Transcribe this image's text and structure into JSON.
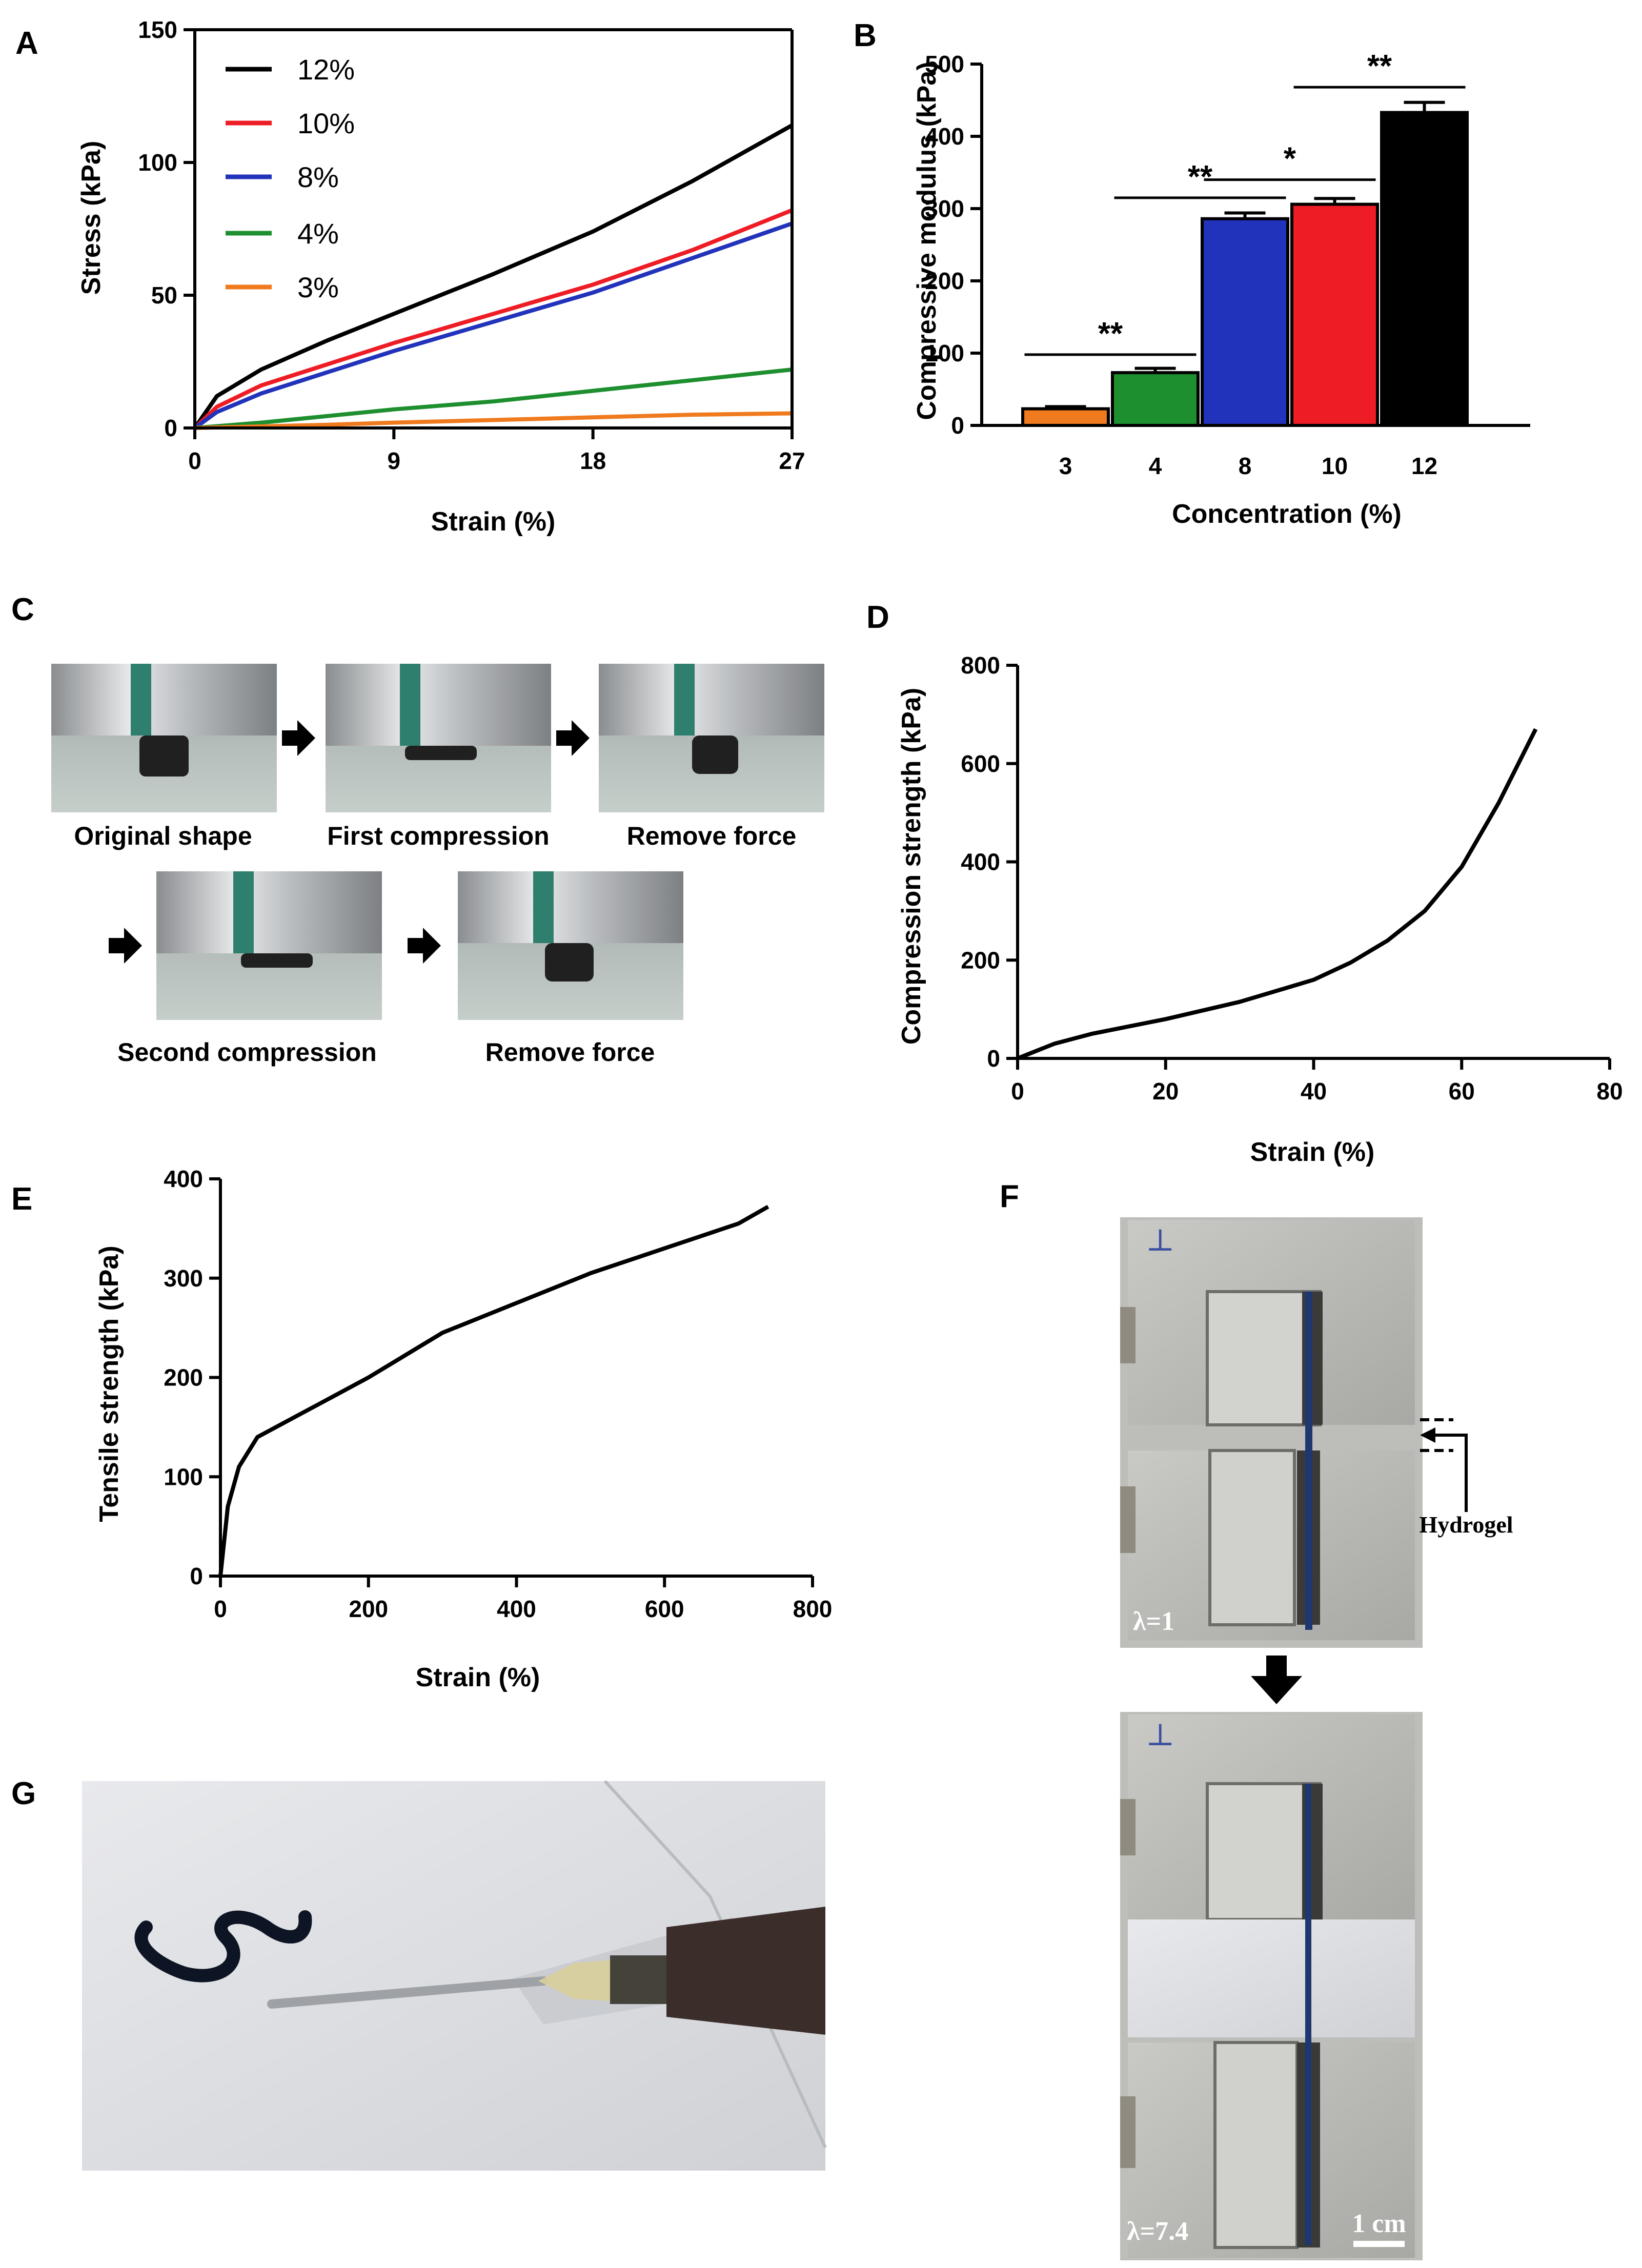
{
  "panels": {
    "A": "A",
    "B": "B",
    "C": "C",
    "D": "D",
    "E": "E",
    "F": "F",
    "G": "G"
  },
  "chart_data": [
    {
      "panel": "A",
      "type": "line",
      "title": "",
      "xlabel": "Strain (%)",
      "ylabel": "Stress (kPa)",
      "xlim": [
        0,
        27
      ],
      "ylim": [
        0,
        150
      ],
      "xticks": [
        "0",
        "9",
        "18",
        "27"
      ],
      "yticks": [
        "0",
        "50",
        "100",
        "150"
      ],
      "grid": false,
      "legend": "top-left",
      "series": [
        {
          "name": "12%",
          "color": "#000000",
          "x": [
            0,
            1,
            3,
            6,
            9,
            13.5,
            18,
            22.5,
            27
          ],
          "y": [
            0,
            12,
            22,
            33,
            43,
            58,
            74,
            93,
            114
          ]
        },
        {
          "name": "10%",
          "color": "#ee1c25",
          "x": [
            0,
            1,
            3,
            6,
            9,
            13.5,
            18,
            22.5,
            27
          ],
          "y": [
            0,
            8,
            16,
            24,
            32,
            43,
            54,
            67,
            82
          ]
        },
        {
          "name": "8%",
          "color": "#2233bb",
          "x": [
            0,
            1,
            3,
            6,
            9,
            13.5,
            18,
            22.5,
            27
          ],
          "y": [
            0,
            6,
            13,
            21,
            29,
            40,
            51,
            64,
            77
          ]
        },
        {
          "name": "4%",
          "color": "#1e8f2e",
          "x": [
            0,
            3,
            6,
            9,
            13.5,
            18,
            22.5,
            27
          ],
          "y": [
            0,
            2,
            4.5,
            7,
            10,
            14,
            18,
            22
          ]
        },
        {
          "name": "3%",
          "color": "#f07a1e",
          "x": [
            0,
            3,
            6,
            9,
            13.5,
            18,
            22.5,
            27
          ],
          "y": [
            0,
            0.6,
            1.2,
            2,
            3,
            4,
            5,
            5.5
          ]
        }
      ]
    },
    {
      "panel": "B",
      "type": "bar",
      "title": "",
      "xlabel": "Concentration (%)",
      "ylabel": "Compressive modulus (kPa)",
      "ylim": [
        0,
        500
      ],
      "yticks": [
        "0",
        "100",
        "200",
        "300",
        "400",
        "500"
      ],
      "categories": [
        "3",
        "4",
        "8",
        "10",
        "12"
      ],
      "values": [
        23,
        73,
        286,
        306,
        433
      ],
      "errors": [
        3,
        6,
        8,
        8,
        14
      ],
      "colors": [
        "#f07a1e",
        "#1e8f2e",
        "#2233bb",
        "#ee1c25",
        "#000000"
      ],
      "significance": [
        {
          "from": 0,
          "to": 1,
          "label": "**",
          "y": 98
        },
        {
          "from": 1,
          "to": 2,
          "label": "**",
          "y": 315
        },
        {
          "from": 2,
          "to": 3,
          "label": "*",
          "y": 340
        },
        {
          "from": 3,
          "to": 4,
          "label": "**",
          "y": 468
        }
      ]
    },
    {
      "panel": "D",
      "type": "line",
      "title": "",
      "xlabel": "Strain (%)",
      "ylabel": "Compression strength (kPa)",
      "xlim": [
        0,
        80
      ],
      "ylim": [
        0,
        800
      ],
      "xticks": [
        "0",
        "20",
        "40",
        "60",
        "80"
      ],
      "yticks": [
        "0",
        "200",
        "400",
        "600",
        "800"
      ],
      "grid": false,
      "series": [
        {
          "name": "",
          "color": "#000000",
          "x": [
            0,
            5,
            10,
            20,
            30,
            40,
            45,
            50,
            55,
            60,
            65,
            70
          ],
          "y": [
            0,
            30,
            50,
            80,
            115,
            160,
            195,
            240,
            300,
            390,
            520,
            670
          ]
        }
      ]
    },
    {
      "panel": "E",
      "type": "line",
      "title": "",
      "xlabel": "Strain (%)",
      "ylabel": "Tensile strength (kPa)",
      "xlim": [
        0,
        800
      ],
      "ylim": [
        0,
        400
      ],
      "xticks": [
        "0",
        "200",
        "400",
        "600",
        "800"
      ],
      "yticks": [
        "0",
        "100",
        "200",
        "300",
        "400"
      ],
      "grid": false,
      "series": [
        {
          "name": "",
          "color": "#000000",
          "x": [
            0,
            10,
            25,
            50,
            100,
            150,
            200,
            300,
            400,
            500,
            600,
            700,
            740
          ],
          "y": [
            0,
            70,
            110,
            140,
            160,
            180,
            200,
            245,
            275,
            305,
            330,
            355,
            372
          ]
        }
      ]
    }
  ],
  "panelC": {
    "captions": [
      "Original shape",
      "First compression",
      "Remove force",
      "Second compression",
      "Remove force"
    ],
    "arrow_icon": "arrow-right-icon"
  },
  "panelF": {
    "top_label": "λ=1",
    "bottom_label": "λ=7.4",
    "hydrogel_label": "Hydrogel",
    "scale_label": "1 cm",
    "arrow_icon": "arrow-down-icon"
  }
}
